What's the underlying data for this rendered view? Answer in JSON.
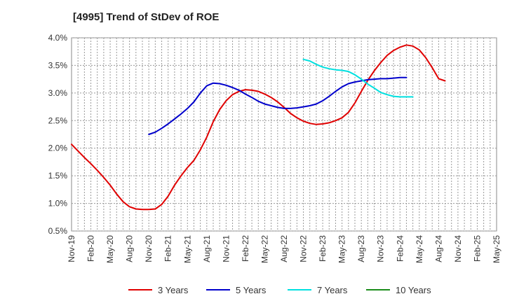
{
  "chart_data": {
    "type": "line",
    "title": "[4995]  Trend of StDev of ROE",
    "xlabel": "",
    "ylabel": "",
    "ylim": [
      0.005,
      0.04
    ],
    "yticks": [
      "0.5%",
      "1.0%",
      "1.5%",
      "2.0%",
      "2.5%",
      "3.0%",
      "3.5%",
      "4.0%"
    ],
    "yvalues": [
      0.005,
      0.01,
      0.015,
      0.02,
      0.025,
      0.03,
      0.035,
      0.04
    ],
    "xticks": [
      "Nov-19",
      "Feb-20",
      "May-20",
      "Aug-20",
      "Nov-20",
      "Feb-21",
      "May-21",
      "Aug-21",
      "Nov-21",
      "Feb-22",
      "May-22",
      "Aug-22",
      "Nov-22",
      "Feb-23",
      "May-23",
      "Aug-23",
      "Nov-23",
      "Feb-24",
      "May-24",
      "Aug-24",
      "Nov-24",
      "Feb-25",
      "May-25"
    ],
    "grid": true,
    "legend_position": "bottom",
    "series": [
      {
        "name": "3 Years",
        "color": "#e00000",
        "points": [
          [
            0,
            0.0207
          ],
          [
            1,
            0.0195
          ],
          [
            2,
            0.0183
          ],
          [
            3,
            0.0172
          ],
          [
            4,
            0.016
          ],
          [
            5,
            0.0147
          ],
          [
            6,
            0.0133
          ],
          [
            7,
            0.0117
          ],
          [
            8,
            0.0103
          ],
          [
            9,
            0.0094
          ],
          [
            10,
            0.009
          ],
          [
            11,
            0.0089
          ],
          [
            12,
            0.0089
          ],
          [
            13,
            0.009
          ],
          [
            14,
            0.0098
          ],
          [
            15,
            0.0113
          ],
          [
            16,
            0.0133
          ],
          [
            17,
            0.015
          ],
          [
            18,
            0.0165
          ],
          [
            19,
            0.0178
          ],
          [
            20,
            0.0197
          ],
          [
            21,
            0.022
          ],
          [
            22,
            0.0248
          ],
          [
            23,
            0.027
          ],
          [
            24,
            0.0286
          ],
          [
            25,
            0.0297
          ],
          [
            26,
            0.0303
          ],
          [
            27,
            0.0306
          ],
          [
            28,
            0.0305
          ],
          [
            29,
            0.0303
          ],
          [
            30,
            0.0298
          ],
          [
            31,
            0.0292
          ],
          [
            32,
            0.0284
          ],
          [
            33,
            0.0274
          ],
          [
            34,
            0.0263
          ],
          [
            35,
            0.0255
          ],
          [
            36,
            0.0249
          ],
          [
            37,
            0.0245
          ],
          [
            38,
            0.0243
          ],
          [
            39,
            0.0244
          ],
          [
            40,
            0.0246
          ],
          [
            41,
            0.025
          ],
          [
            42,
            0.0255
          ],
          [
            43,
            0.0265
          ],
          [
            44,
            0.0282
          ],
          [
            45,
            0.0303
          ],
          [
            46,
            0.0323
          ],
          [
            47,
            0.034
          ],
          [
            48,
            0.0355
          ],
          [
            49,
            0.0368
          ],
          [
            50,
            0.0377
          ],
          [
            51,
            0.0383
          ],
          [
            52,
            0.0387
          ],
          [
            53,
            0.0385
          ],
          [
            54,
            0.0378
          ],
          [
            55,
            0.0364
          ],
          [
            56,
            0.0346
          ],
          [
            57,
            0.0326
          ],
          [
            58,
            0.0322
          ]
        ]
      },
      {
        "name": "5 Years",
        "color": "#0000cc",
        "points": [
          [
            12,
            0.0225
          ],
          [
            13,
            0.0229
          ],
          [
            14,
            0.0236
          ],
          [
            15,
            0.0244
          ],
          [
            16,
            0.0253
          ],
          [
            17,
            0.0262
          ],
          [
            18,
            0.0272
          ],
          [
            19,
            0.0284
          ],
          [
            20,
            0.03
          ],
          [
            21,
            0.0313
          ],
          [
            22,
            0.0318
          ],
          [
            23,
            0.0317
          ],
          [
            24,
            0.0314
          ],
          [
            25,
            0.031
          ],
          [
            26,
            0.0305
          ],
          [
            27,
            0.0298
          ],
          [
            28,
            0.0292
          ],
          [
            29,
            0.0285
          ],
          [
            30,
            0.028
          ],
          [
            31,
            0.0277
          ],
          [
            32,
            0.0274
          ],
          [
            33,
            0.0272
          ],
          [
            34,
            0.0272
          ],
          [
            35,
            0.0273
          ],
          [
            36,
            0.0275
          ],
          [
            37,
            0.0277
          ],
          [
            38,
            0.028
          ],
          [
            39,
            0.0286
          ],
          [
            40,
            0.0294
          ],
          [
            41,
            0.0303
          ],
          [
            42,
            0.0311
          ],
          [
            43,
            0.0317
          ],
          [
            44,
            0.032
          ],
          [
            45,
            0.0322
          ],
          [
            46,
            0.0324
          ],
          [
            47,
            0.0325
          ],
          [
            48,
            0.0326
          ],
          [
            49,
            0.0326
          ],
          [
            50,
            0.0327
          ],
          [
            51,
            0.0328
          ],
          [
            52,
            0.0328
          ]
        ]
      },
      {
        "name": "7 Years",
        "color": "#00e0e0",
        "points": [
          [
            36,
            0.0361
          ],
          [
            37,
            0.0358
          ],
          [
            38,
            0.0352
          ],
          [
            39,
            0.0347
          ],
          [
            40,
            0.0344
          ],
          [
            41,
            0.0342
          ],
          [
            42,
            0.0341
          ],
          [
            43,
            0.0339
          ],
          [
            44,
            0.0333
          ],
          [
            45,
            0.0325
          ],
          [
            46,
            0.0316
          ],
          [
            47,
            0.0309
          ],
          [
            48,
            0.0301
          ],
          [
            49,
            0.0297
          ],
          [
            50,
            0.0294
          ],
          [
            51,
            0.0293
          ],
          [
            52,
            0.0293
          ],
          [
            53,
            0.0293
          ]
        ]
      },
      {
        "name": "10 Years",
        "color": "#1a8c1a",
        "points": []
      }
    ]
  }
}
